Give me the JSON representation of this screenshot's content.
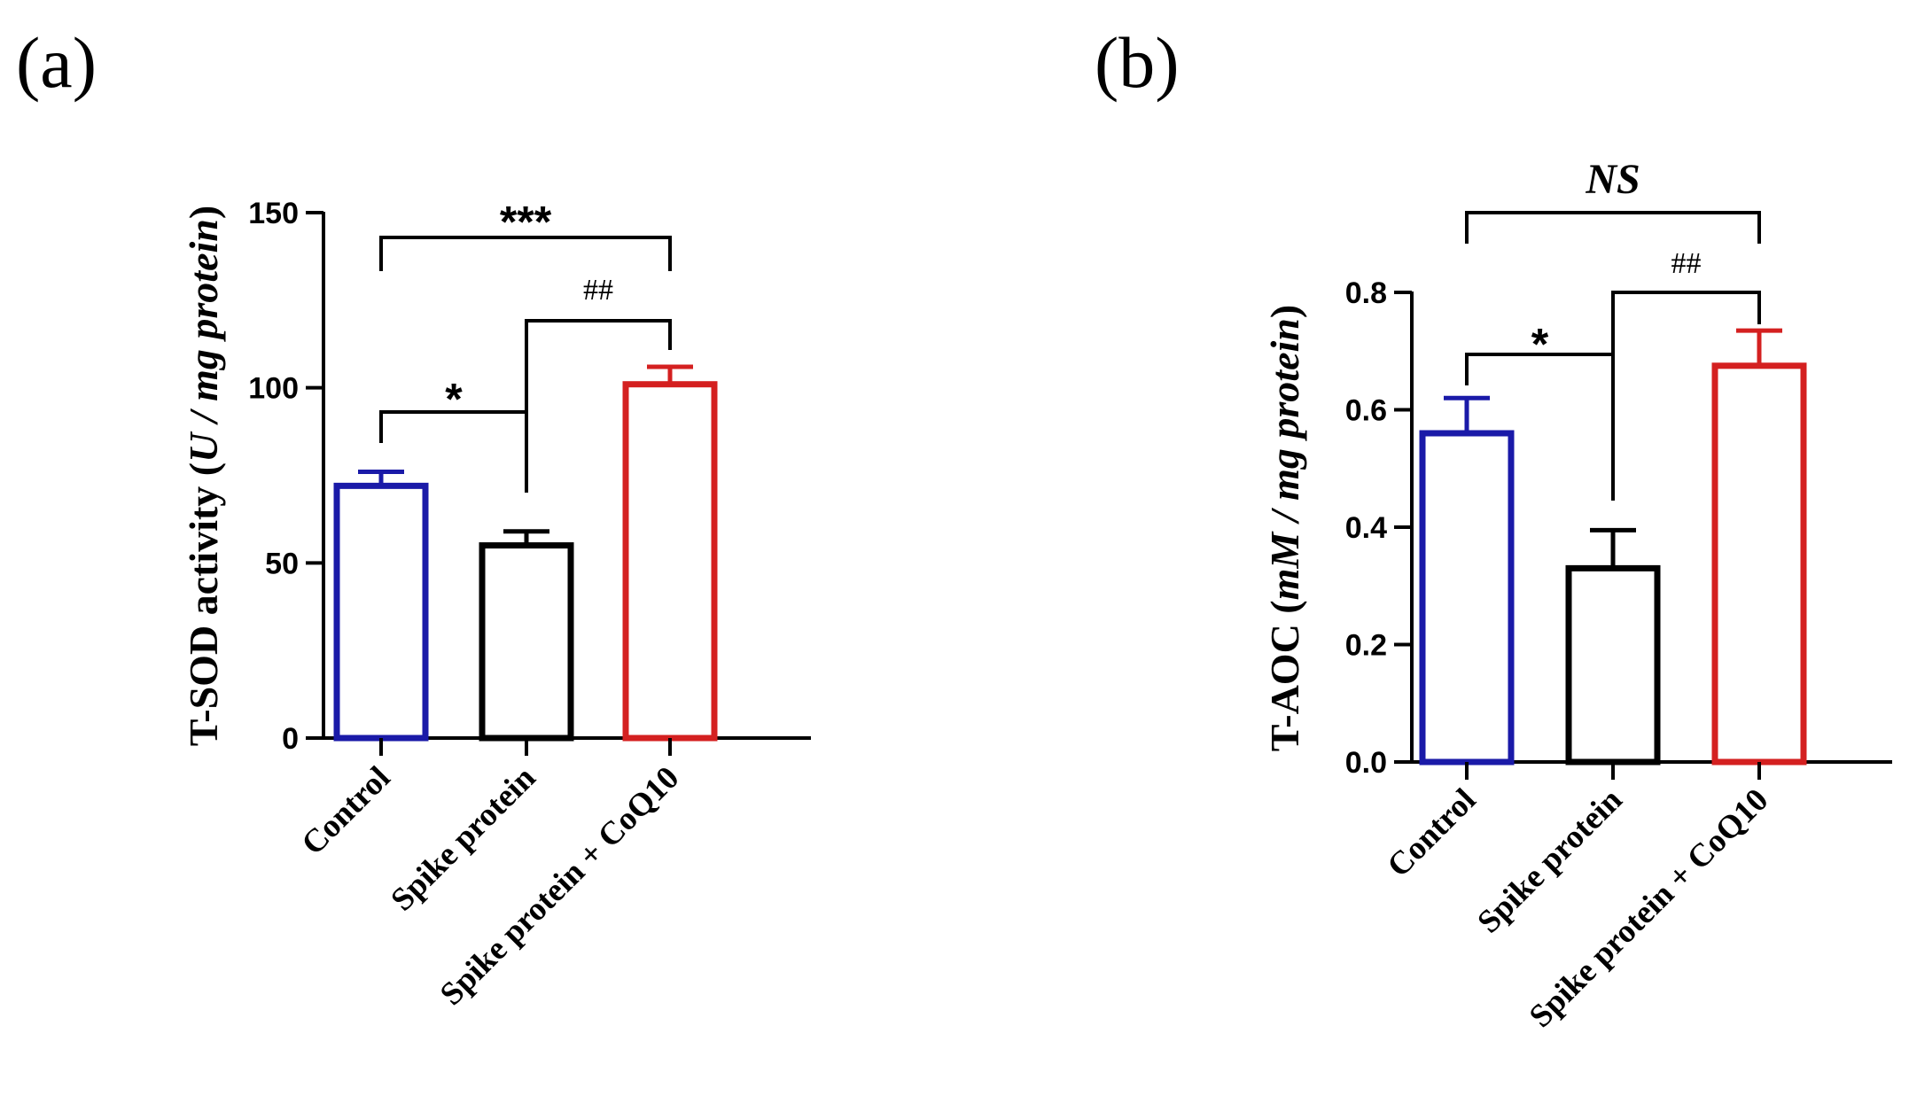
{
  "chart_data": [
    {
      "panel": "(a)",
      "type": "bar",
      "categories": [
        "Control",
        "Spike protein",
        "Spike protein + CoQ10"
      ],
      "values": [
        72,
        55,
        101
      ],
      "errors": [
        4,
        4,
        5
      ],
      "colors": [
        "#1a1aa8",
        "#000000",
        "#d42020"
      ],
      "ylim": [
        0,
        150
      ],
      "yticks": [
        0,
        50,
        100,
        150
      ],
      "ylabel_prefix": "T-SOD activity (",
      "ylabel_italic": "U / mg protein",
      "ylabel_suffix": ")",
      "significance": [
        {
          "from": 0,
          "to": 1,
          "label": "*",
          "style": "star"
        },
        {
          "from": 1,
          "to": 2,
          "label": "##",
          "style": "hash"
        },
        {
          "from": 0,
          "to": 2,
          "label": "***",
          "style": "star"
        }
      ]
    },
    {
      "panel": "(b)",
      "type": "bar",
      "categories": [
        "Control",
        "Spike protein",
        "Spike protein + CoQ10"
      ],
      "values": [
        0.56,
        0.33,
        0.675
      ],
      "errors": [
        0.06,
        0.065,
        0.06
      ],
      "colors": [
        "#1a1aa8",
        "#000000",
        "#d42020"
      ],
      "ylim": [
        0,
        0.8
      ],
      "yticks": [
        "0.0",
        "0.2",
        "0.4",
        "0.6",
        "0.8"
      ],
      "ylabel_prefix": "T-AOC (",
      "ylabel_italic": "mM / mg protein",
      "ylabel_suffix": ")",
      "significance": [
        {
          "from": 0,
          "to": 1,
          "label": "*",
          "style": "star"
        },
        {
          "from": 1,
          "to": 2,
          "label": "##",
          "style": "hash"
        },
        {
          "from": 0,
          "to": 2,
          "label": "NS",
          "style": "ns"
        }
      ]
    }
  ]
}
